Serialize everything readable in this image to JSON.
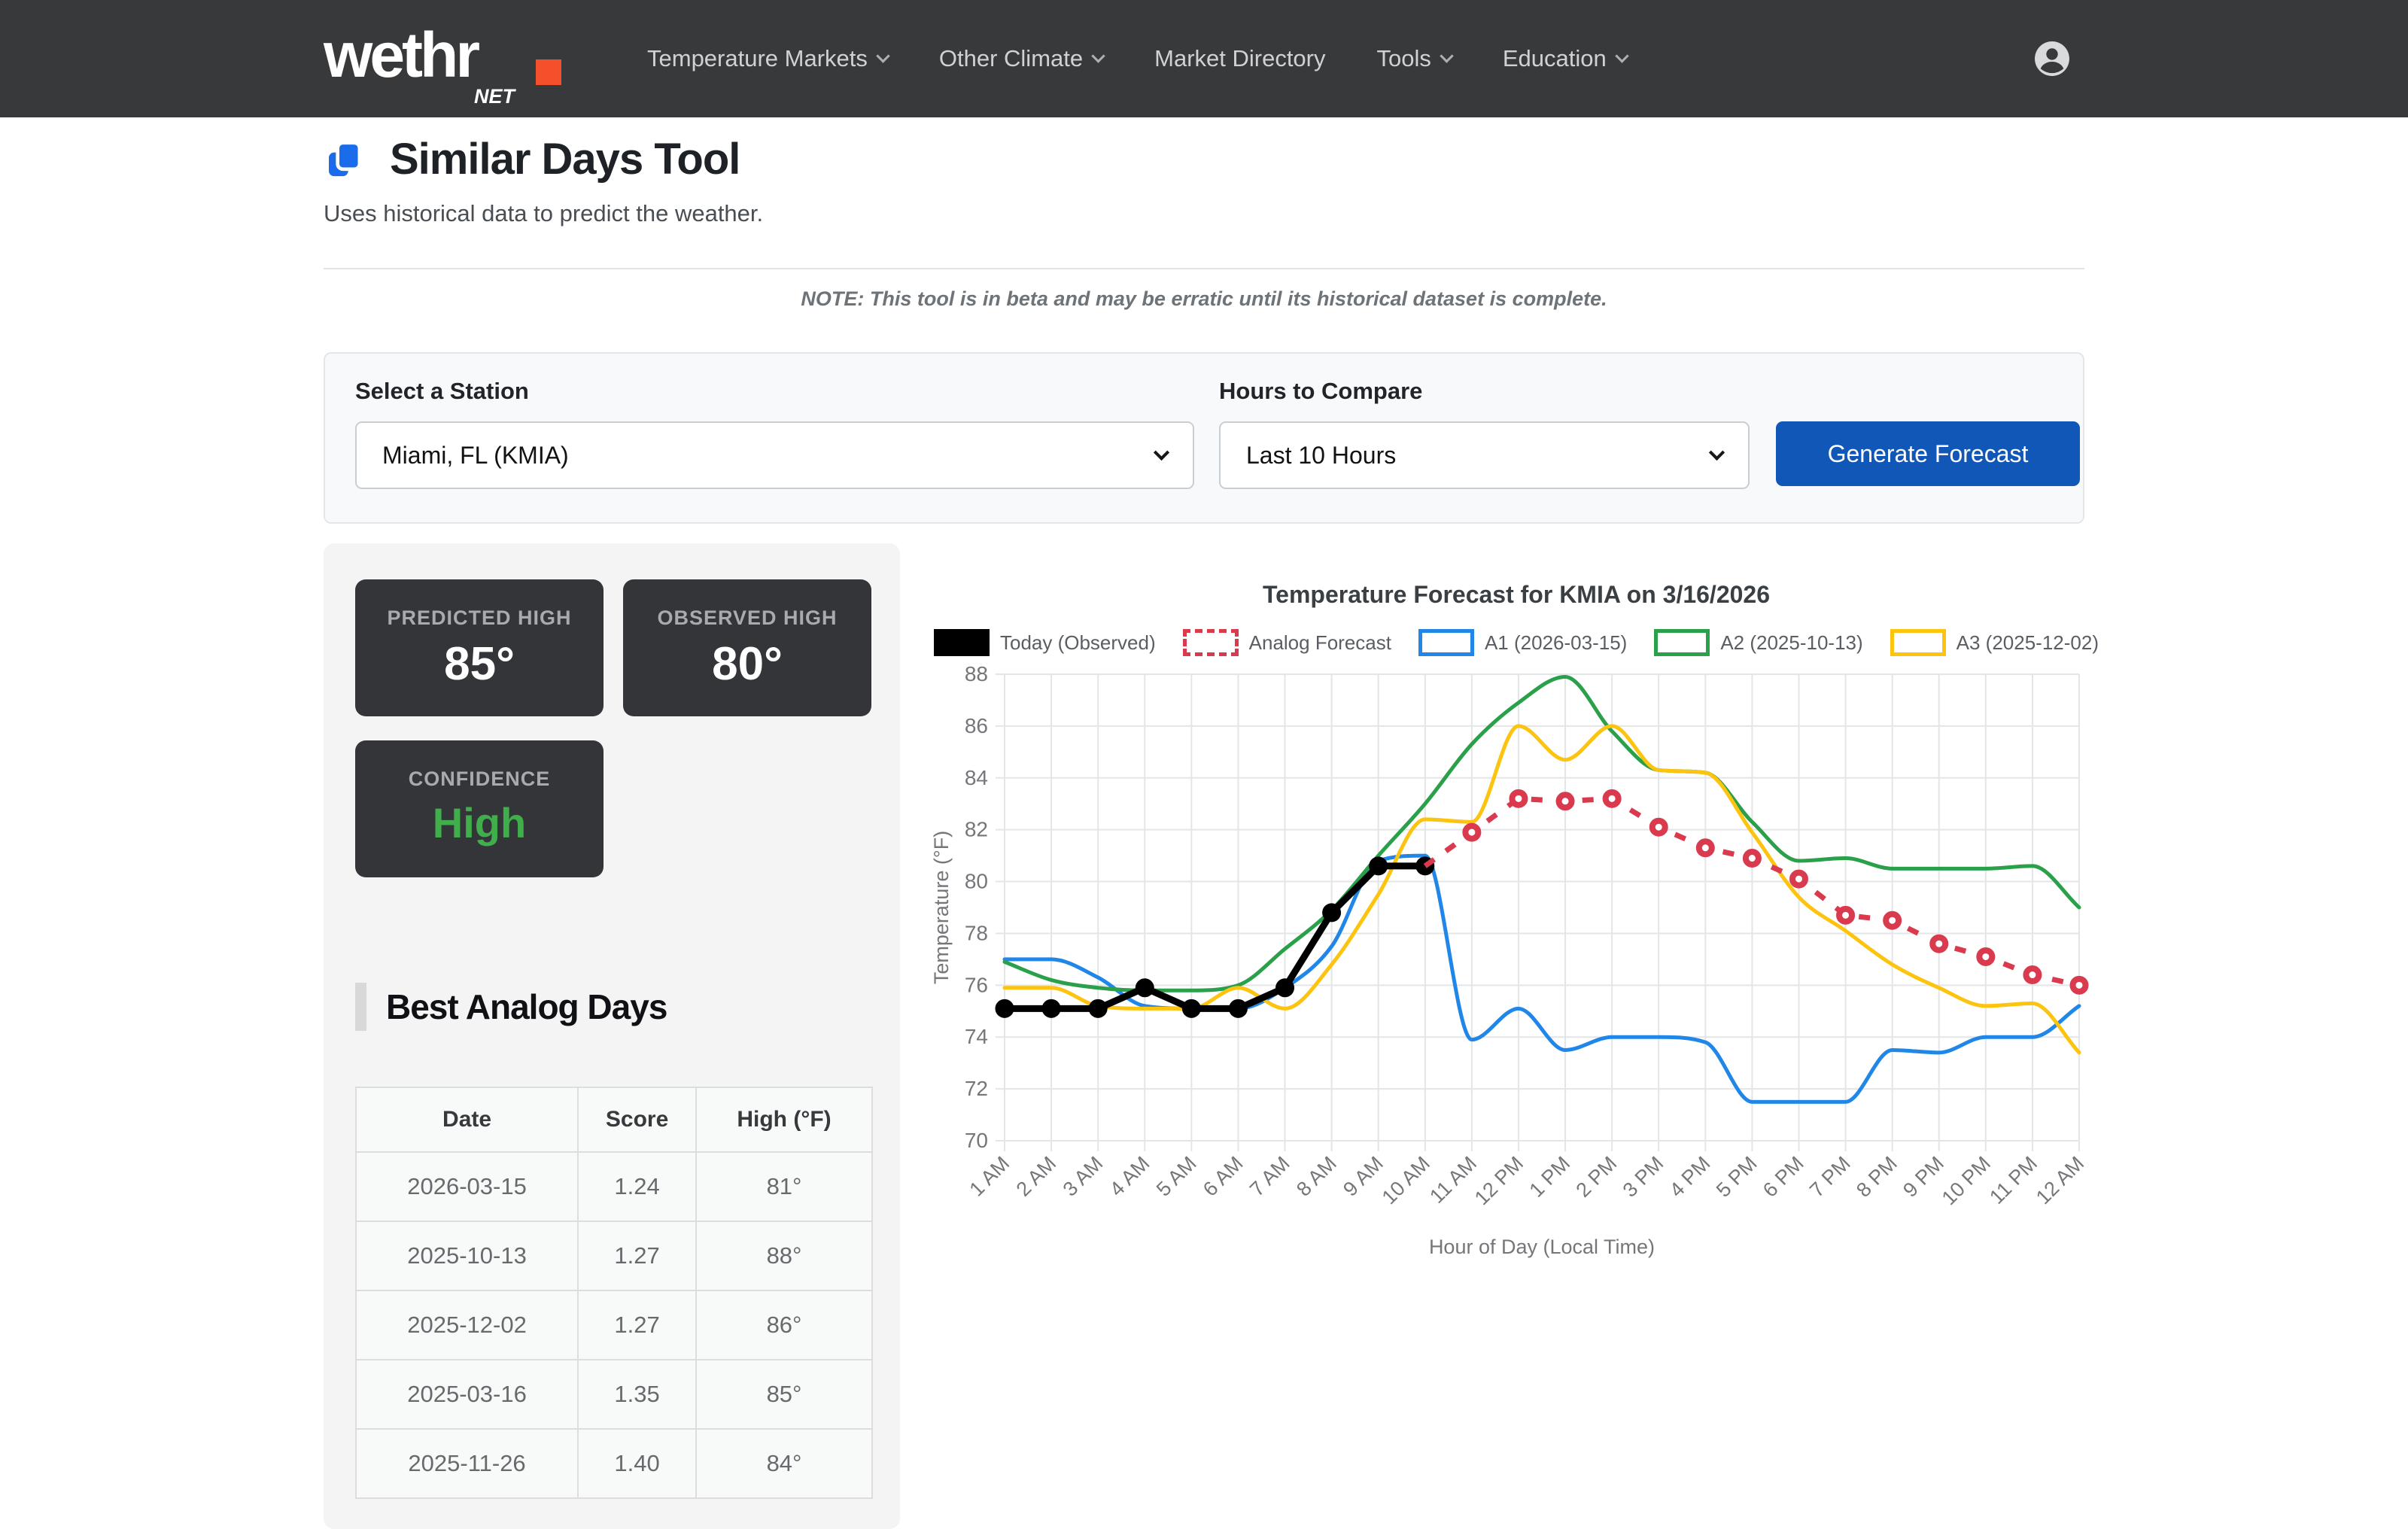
{
  "header": {
    "logo_text": "wethr",
    "logo_dot_color": "#f4502c",
    "logo_suffix": "NET",
    "nav": [
      {
        "label": "Temperature Markets",
        "dropdown": true
      },
      {
        "label": "Other Climate",
        "dropdown": true
      },
      {
        "label": "Market Directory",
        "dropdown": false
      },
      {
        "label": "Tools",
        "dropdown": true
      },
      {
        "label": "Education",
        "dropdown": true
      }
    ]
  },
  "page": {
    "title": "Similar Days Tool",
    "subtitle": "Uses historical data to predict the weather.",
    "note": "NOTE: This tool is in beta and may be erratic until its historical dataset is complete."
  },
  "form": {
    "station_label": "Select a Station",
    "station_value": "Miami, FL (KMIA)",
    "hours_label": "Hours to Compare",
    "hours_value": "Last 10 Hours",
    "submit_label": "Generate Forecast",
    "submit_color": "#1157b8"
  },
  "stats": {
    "predicted": {
      "label": "PREDICTED HIGH",
      "value": "85°"
    },
    "observed": {
      "label": "OBSERVED HIGH",
      "value": "80°"
    },
    "confidence": {
      "label": "CONFIDENCE",
      "value": "High",
      "color": "#3fae4b"
    }
  },
  "analog_table": {
    "heading": "Best Analog Days",
    "columns": [
      "Date",
      "Score",
      "High (°F)"
    ],
    "rows": [
      [
        "2026-03-15",
        "1.24",
        "81°"
      ],
      [
        "2025-10-13",
        "1.27",
        "88°"
      ],
      [
        "2025-12-02",
        "1.27",
        "86°"
      ],
      [
        "2025-03-16",
        "1.35",
        "85°"
      ],
      [
        "2025-11-26",
        "1.40",
        "84°"
      ]
    ]
  },
  "chart_data": {
    "type": "line",
    "title": "Temperature Forecast for KMIA on 3/16/2026",
    "xlabel": "Hour of Day (Local Time)",
    "ylabel": "Temperature (°F)",
    "ylim": [
      70,
      88
    ],
    "ytick_step": 2,
    "grid": true,
    "legend_position": "top",
    "x": [
      "1 AM",
      "2 AM",
      "3 AM",
      "4 AM",
      "5 AM",
      "6 AM",
      "7 AM",
      "8 AM",
      "9 AM",
      "10 AM",
      "11 AM",
      "12 PM",
      "1 PM",
      "2 PM",
      "3 PM",
      "4 PM",
      "5 PM",
      "6 PM",
      "7 PM",
      "8 PM",
      "9 PM",
      "10 PM",
      "11 PM",
      "12 AM"
    ],
    "series": [
      {
        "name": "Today (Observed)",
        "color": "#000000",
        "style": "solid-markers",
        "values": [
          75.1,
          75.1,
          75.1,
          75.9,
          75.1,
          75.1,
          75.9,
          78.8,
          80.6,
          80.6,
          null,
          null,
          null,
          null,
          null,
          null,
          null,
          null,
          null,
          null,
          null,
          null,
          null,
          null
        ]
      },
      {
        "name": "Analog Forecast",
        "color": "#d93a4e",
        "style": "dashed-markers",
        "values": [
          null,
          null,
          null,
          null,
          null,
          null,
          null,
          null,
          null,
          80.6,
          81.9,
          83.2,
          83.1,
          83.2,
          82.1,
          81.3,
          80.9,
          80.1,
          78.7,
          78.5,
          77.6,
          77.1,
          76.4,
          76.0
        ]
      },
      {
        "name": "A1 (2026-03-15)",
        "color": "#2087e9",
        "style": "smooth",
        "values": [
          77.0,
          77.0,
          76.3,
          75.2,
          75.1,
          75.1,
          75.9,
          77.5,
          80.8,
          81.0,
          73.9,
          75.1,
          73.5,
          74.0,
          74.0,
          73.8,
          71.5,
          71.5,
          71.5,
          73.5,
          73.4,
          74.0,
          74.0,
          75.2
        ]
      },
      {
        "name": "A2 (2025-10-13)",
        "color": "#2aa04a",
        "style": "smooth",
        "values": [
          76.9,
          76.2,
          75.9,
          75.8,
          75.8,
          76.0,
          77.4,
          78.9,
          81.0,
          83.0,
          85.3,
          86.9,
          87.9,
          85.8,
          84.3,
          84.2,
          82.3,
          80.8,
          80.9,
          80.5,
          80.5,
          80.5,
          80.6,
          79.0
        ]
      },
      {
        "name": "A3 (2025-12-02)",
        "color": "#fcc30f",
        "style": "smooth",
        "values": [
          75.9,
          75.9,
          75.2,
          75.1,
          75.1,
          75.9,
          75.1,
          76.8,
          79.5,
          82.4,
          82.3,
          86.0,
          84.7,
          86.0,
          84.3,
          84.2,
          81.9,
          79.4,
          78.1,
          76.8,
          75.9,
          75.2,
          75.3,
          73.4
        ]
      }
    ]
  }
}
